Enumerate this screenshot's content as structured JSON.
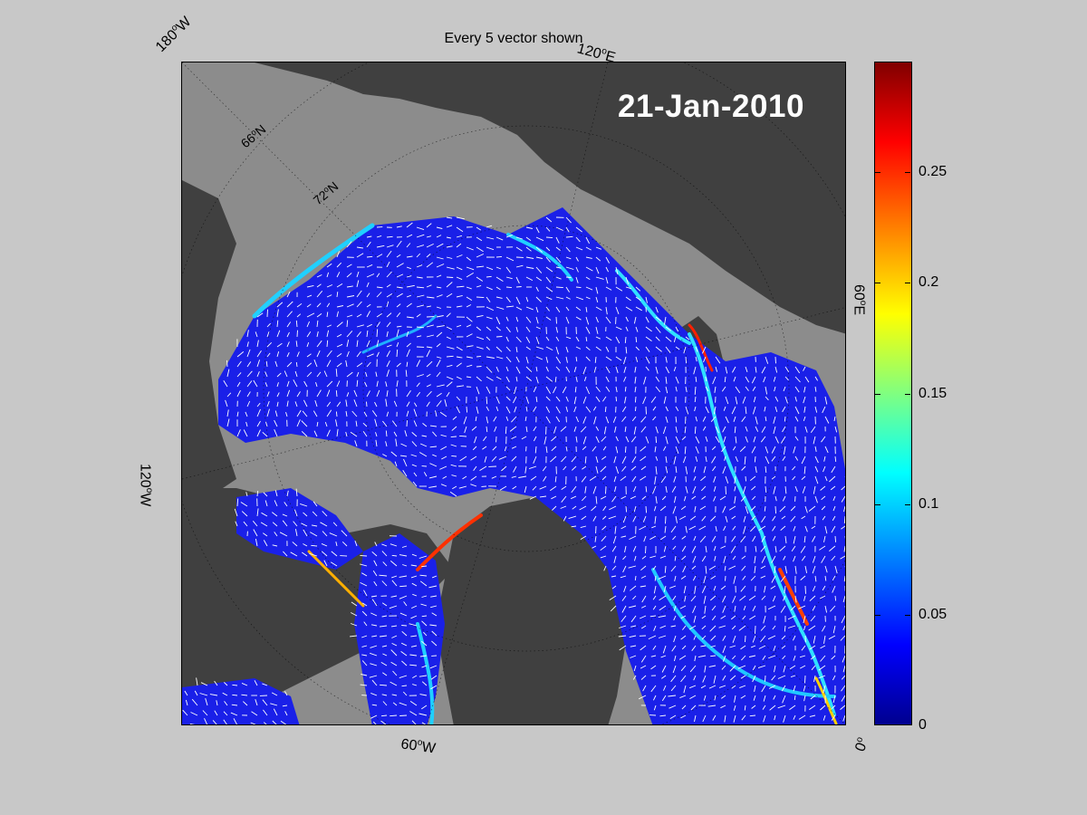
{
  "figure": {
    "title": "Every 5 vector shown",
    "date": "21-Jan-2010"
  },
  "map": {
    "projection": "north-polar-stereographic",
    "longitude_labels": {
      "lon_180W": "180",
      "lon_120E": "120",
      "lon_120W": "120",
      "lon_60E": "60",
      "lon_60W": "60",
      "lon_0": "0"
    },
    "longitude_suffixes": {
      "lon_180W": "W",
      "lon_120E": "E",
      "lon_120W": "W",
      "lon_60E": "E",
      "lon_60W": "W",
      "lon_0": ""
    },
    "latitude_labels": {
      "lat_66N": "66",
      "lat_72N": "72"
    },
    "latitude_suffix": "N",
    "degree_symbol": "o",
    "colors": {
      "land": "#404040",
      "ocean_no_ice": "#8c8c8c",
      "ice_low": "#0a1aff",
      "ice_mid": "#1ec8ff",
      "ice_high": "#ff2a00",
      "vectors": "#ffffff"
    }
  },
  "colorbar": {
    "colormap": "jet",
    "min": 0,
    "max": 0.3,
    "ticks": [
      "0",
      "0.05",
      "0.1",
      "0.15",
      "0.2",
      "0.25"
    ],
    "tick_values": [
      0,
      0.05,
      0.1,
      0.15,
      0.2,
      0.25
    ]
  }
}
